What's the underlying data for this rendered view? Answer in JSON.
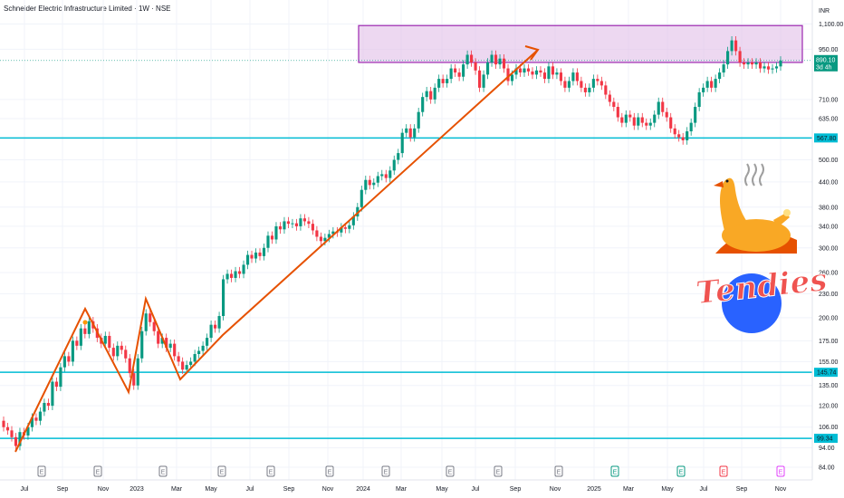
{
  "header": {
    "title": "Schneider Electric Infrastructure Limited · 1W · NSE"
  },
  "axes": {
    "currency": "INR"
  },
  "colors": {
    "up": "#089981",
    "down": "#f23645",
    "support": "#00bcd4",
    "zone_fill": "#e1bee7",
    "zone_border": "#9c27b0",
    "arrow": "#e65100",
    "grid": "#f0f3fa",
    "axis_text": "#131722"
  },
  "chart_data": {
    "type": "candlestick",
    "title": "Schneider Electric Infrastructure Limited · 1W · NSE",
    "y_scale": "log",
    "y_ticks": [
      "1,100.00",
      "950.00",
      "710.00",
      "635.00",
      "500.00",
      "440.00",
      "380.00",
      "340.00",
      "300.00",
      "260.00",
      "230.00",
      "200.00",
      "175.00",
      "155.00",
      "135.00",
      "120.00",
      "106.00",
      "94.00",
      "84.00"
    ],
    "x_ticks": [
      "Jul",
      "Sep",
      "Nov",
      "2023",
      "Mar",
      "May",
      "Jul",
      "Sep",
      "Nov",
      "2024",
      "Mar",
      "May",
      "Jul",
      "Sep",
      "Nov",
      "2025",
      "Mar",
      "May",
      "Jul",
      "Sep",
      "Nov"
    ],
    "earnings_markers": [
      "E",
      "E",
      "E",
      "E",
      "E",
      "E",
      "E",
      "E",
      "E",
      "E",
      "E",
      "E",
      "E",
      "E"
    ],
    "horizontal_lines": [
      {
        "label": "567.80",
        "value": 567.8
      },
      {
        "label": "145.74",
        "value": 145.74
      },
      {
        "label": "99.34",
        "value": 99.34
      }
    ],
    "last_price": {
      "value": 890.1,
      "label": "890.10",
      "countdown": "3d 4h"
    },
    "resistance_zone": {
      "low": 880,
      "high": 1090
    },
    "series": [
      {
        "values": [
          [
            110,
            106
          ],
          [
            106,
            104
          ],
          [
            104,
            100
          ],
          [
            100,
            95
          ],
          [
            95,
            103
          ],
          [
            103,
            101
          ],
          [
            101,
            106
          ],
          [
            106,
            112
          ],
          [
            112,
            110
          ],
          [
            110,
            116
          ],
          [
            116,
            122
          ],
          [
            122,
            120
          ],
          [
            120,
            138
          ],
          [
            138,
            134
          ],
          [
            134,
            150
          ],
          [
            150,
            160
          ],
          [
            160,
            155
          ],
          [
            155,
            175
          ],
          [
            175,
            170
          ],
          [
            170,
            188
          ],
          [
            188,
            182
          ],
          [
            182,
            196
          ],
          [
            196,
            188
          ],
          [
            188,
            178
          ],
          [
            178,
            172
          ],
          [
            172,
            180
          ],
          [
            180,
            168
          ],
          [
            168,
            160
          ],
          [
            160,
            170
          ],
          [
            170,
            166
          ],
          [
            166,
            158
          ],
          [
            158,
            145
          ],
          [
            145,
            135
          ],
          [
            135,
            158
          ],
          [
            158,
            185
          ],
          [
            185,
            205
          ],
          [
            205,
            195
          ],
          [
            195,
            185
          ],
          [
            185,
            172
          ],
          [
            172,
            178
          ],
          [
            178,
            168
          ],
          [
            168,
            172
          ],
          [
            172,
            160
          ],
          [
            160,
            155
          ],
          [
            155,
            148
          ],
          [
            148,
            152
          ],
          [
            152,
            155
          ],
          [
            155,
            162
          ],
          [
            162,
            165
          ],
          [
            165,
            170
          ],
          [
            170,
            178
          ],
          [
            178,
            192
          ],
          [
            192,
            188
          ],
          [
            188,
            202
          ],
          [
            202,
            250
          ],
          [
            250,
            258
          ],
          [
            258,
            252
          ],
          [
            252,
            262
          ],
          [
            262,
            258
          ],
          [
            258,
            272
          ],
          [
            272,
            288
          ],
          [
            288,
            282
          ],
          [
            282,
            292
          ],
          [
            292,
            286
          ],
          [
            286,
            300
          ],
          [
            300,
            322
          ],
          [
            322,
            315
          ],
          [
            315,
            340
          ],
          [
            340,
            334
          ],
          [
            334,
            350
          ],
          [
            350,
            345
          ],
          [
            345,
            346
          ],
          [
            346,
            340
          ],
          [
            340,
            356
          ],
          [
            356,
            350
          ],
          [
            350,
            345
          ],
          [
            345,
            332
          ],
          [
            332,
            320
          ],
          [
            320,
            312
          ],
          [
            312,
            318
          ],
          [
            318,
            325
          ],
          [
            325,
            330
          ],
          [
            330,
            328
          ],
          [
            328,
            338
          ],
          [
            338,
            335
          ],
          [
            335,
            342
          ],
          [
            342,
            360
          ],
          [
            360,
            380
          ],
          [
            380,
            420
          ],
          [
            420,
            445
          ],
          [
            445,
            432
          ],
          [
            432,
            438
          ],
          [
            438,
            455
          ],
          [
            455,
            460
          ],
          [
            460,
            450
          ],
          [
            450,
            470
          ],
          [
            470,
            500
          ],
          [
            500,
            520
          ],
          [
            520,
            585
          ],
          [
            585,
            600
          ],
          [
            600,
            570
          ],
          [
            570,
            600
          ],
          [
            600,
            660
          ],
          [
            660,
            720
          ],
          [
            720,
            745
          ],
          [
            745,
            710
          ],
          [
            710,
            760
          ],
          [
            760,
            800
          ],
          [
            800,
            780
          ],
          [
            780,
            800
          ],
          [
            800,
            850
          ],
          [
            850,
            830
          ],
          [
            830,
            810
          ],
          [
            810,
            870
          ],
          [
            870,
            920
          ],
          [
            920,
            880
          ],
          [
            880,
            840
          ],
          [
            840,
            760
          ],
          [
            760,
            820
          ],
          [
            820,
            880
          ],
          [
            880,
            920
          ],
          [
            920,
            870
          ],
          [
            870,
            900
          ],
          [
            900,
            850
          ],
          [
            850,
            790
          ],
          [
            790,
            820
          ],
          [
            820,
            850
          ],
          [
            850,
            830
          ],
          [
            830,
            850
          ],
          [
            850,
            835
          ],
          [
            835,
            820
          ],
          [
            820,
            840
          ],
          [
            840,
            830
          ],
          [
            830,
            800
          ],
          [
            800,
            860
          ],
          [
            860,
            820
          ],
          [
            820,
            830
          ],
          [
            830,
            790
          ],
          [
            790,
            760
          ],
          [
            760,
            790
          ],
          [
            790,
            830
          ],
          [
            830,
            790
          ],
          [
            790,
            760
          ],
          [
            760,
            740
          ],
          [
            740,
            760
          ],
          [
            760,
            800
          ],
          [
            800,
            790
          ],
          [
            790,
            770
          ],
          [
            770,
            730
          ],
          [
            730,
            700
          ],
          [
            700,
            680
          ],
          [
            680,
            640
          ],
          [
            640,
            620
          ],
          [
            620,
            650
          ],
          [
            650,
            640
          ],
          [
            640,
            610
          ],
          [
            610,
            640
          ],
          [
            640,
            620
          ],
          [
            620,
            610
          ],
          [
            610,
            620
          ],
          [
            620,
            650
          ],
          [
            650,
            700
          ],
          [
            700,
            660
          ],
          [
            660,
            640
          ],
          [
            640,
            600
          ],
          [
            600,
            580
          ],
          [
            580,
            570
          ],
          [
            570,
            560
          ],
          [
            560,
            590
          ],
          [
            590,
            620
          ],
          [
            620,
            680
          ],
          [
            680,
            740
          ],
          [
            740,
            760
          ],
          [
            760,
            790
          ],
          [
            790,
            760
          ],
          [
            760,
            800
          ],
          [
            800,
            830
          ],
          [
            830,
            870
          ],
          [
            870,
            940
          ],
          [
            940,
            1000
          ],
          [
            1000,
            940
          ],
          [
            940,
            880
          ],
          [
            880,
            870
          ],
          [
            870,
            880
          ],
          [
            880,
            870
          ],
          [
            870,
            880
          ],
          [
            880,
            850
          ],
          [
            850,
            860
          ],
          [
            860,
            845
          ],
          [
            845,
            850
          ],
          [
            850,
            860
          ],
          [
            860,
            890
          ]
        ]
      }
    ],
    "annotations": [
      "zigzag pattern",
      "rising arrow",
      "resistance zone"
    ]
  },
  "logo": {
    "text": "Tendies"
  }
}
